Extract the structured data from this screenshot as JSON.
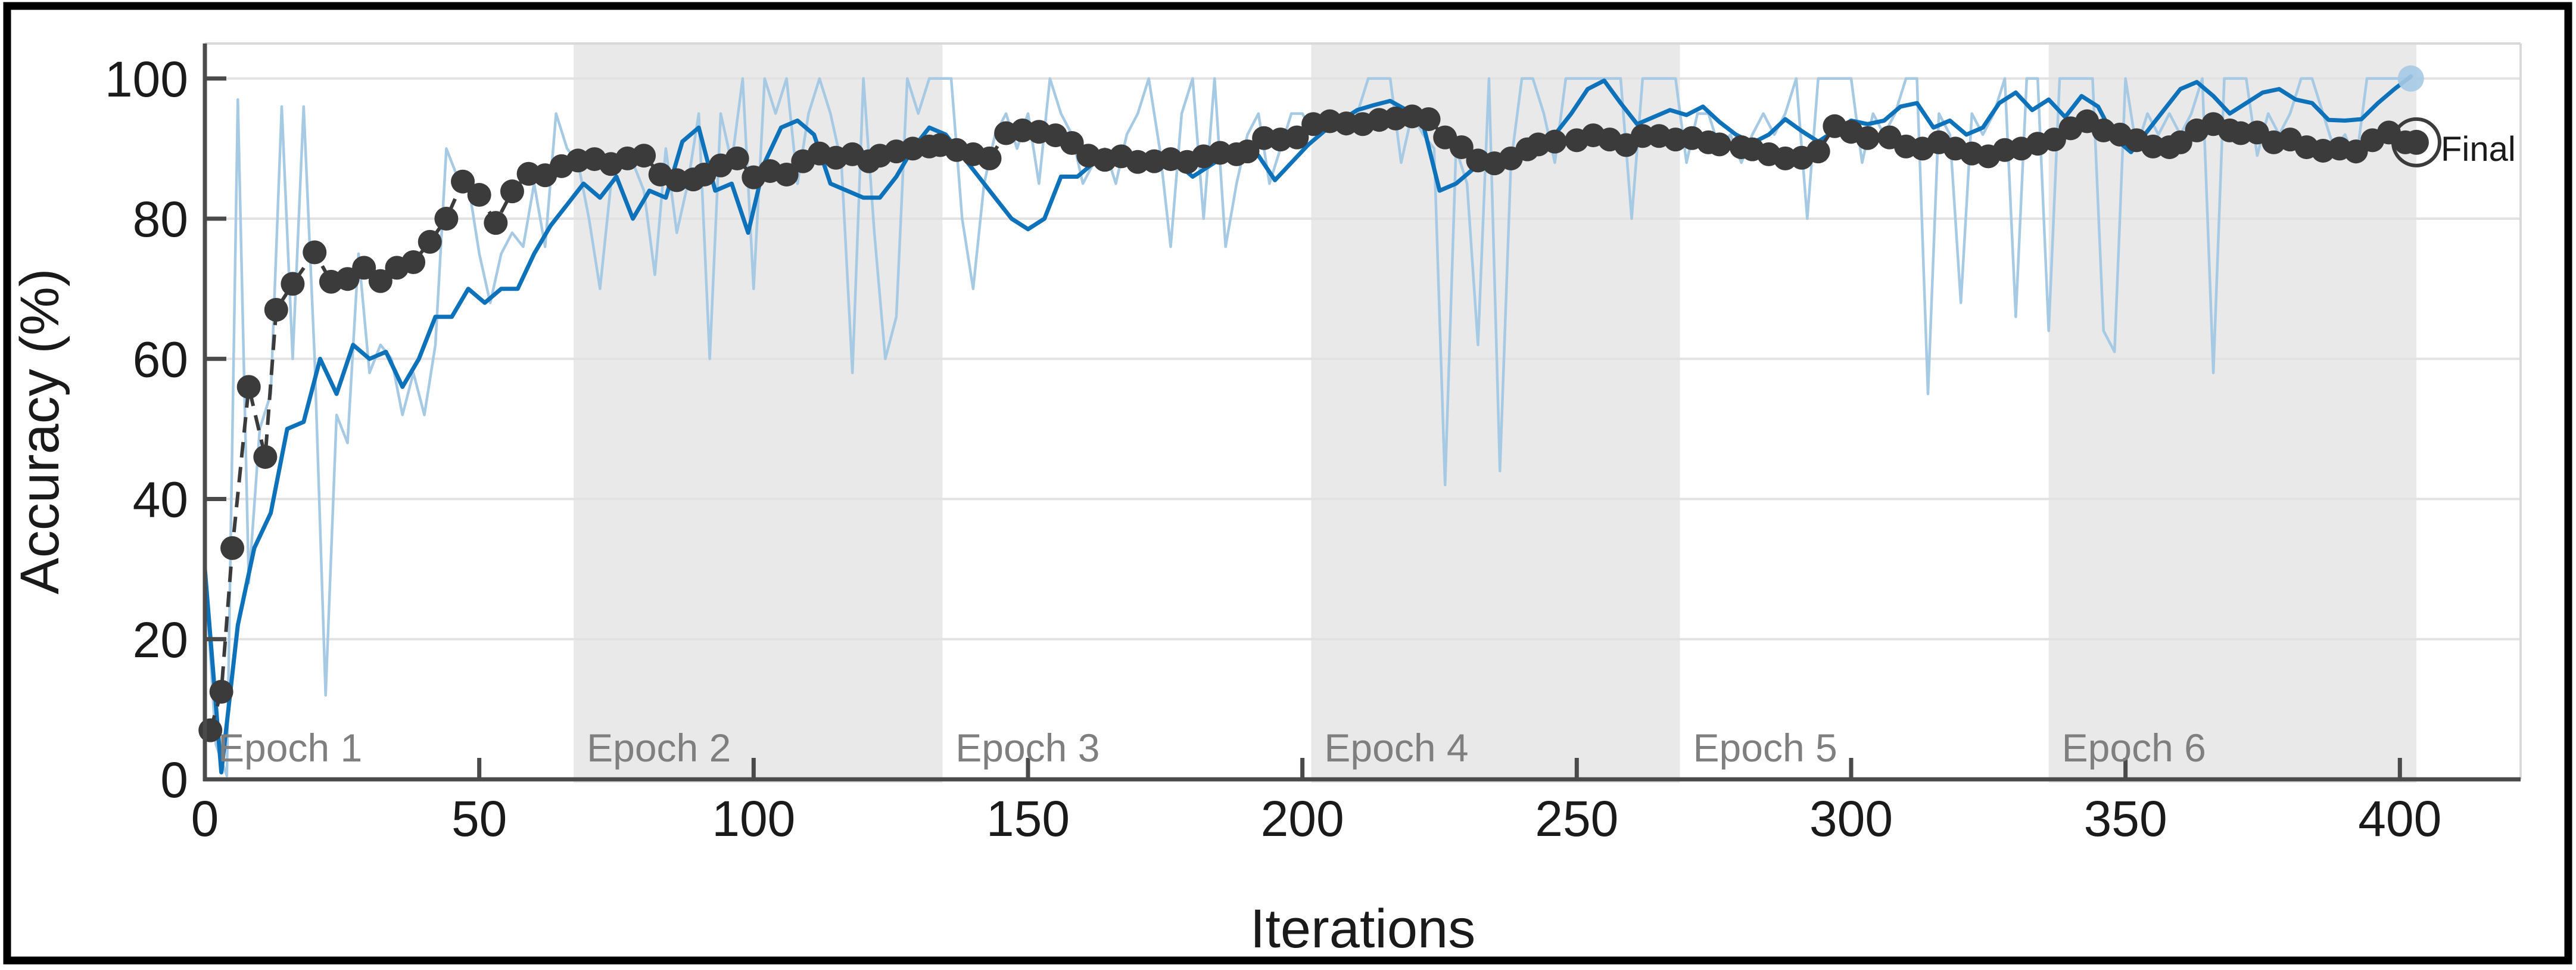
{
  "figure": {
    "background": "#ffffff",
    "border_color": "#000000",
    "border_width": 12
  },
  "chart_data": {
    "type": "line",
    "xlabel": "Iterations",
    "ylabel": "Accuracy (%)",
    "xlim": [
      0,
      422
    ],
    "ylim": [
      0,
      105
    ],
    "x_ticks": [
      0,
      50,
      100,
      150,
      200,
      250,
      300,
      350,
      400
    ],
    "y_ticks": [
      0,
      20,
      40,
      60,
      80,
      100
    ],
    "grid_y": [
      20,
      40,
      60,
      80,
      100
    ],
    "grid_on": true,
    "legend_position": "none",
    "colors": {
      "grid": "#e2e2e2",
      "axis": "#4a4a4a",
      "box_light": "#d9d9d9",
      "band": "#e9e9e9",
      "epoch_label": "#7f7f7f",
      "tick_label": "#1a1a1a",
      "raw": "#a6c9e4",
      "smoothed": "#0d72b9",
      "validation": "#3b3b3b"
    },
    "epochs": {
      "labels": [
        "Epoch 1",
        "Epoch 2",
        "Epoch 3",
        "Epoch 4",
        "Epoch 5",
        "Epoch 6"
      ],
      "boundaries": [
        0,
        67.2,
        134.4,
        201.6,
        268.8,
        336,
        403
      ],
      "shaded_indices": [
        1,
        3,
        5
      ]
    },
    "series": [
      {
        "name": "training-accuracy-raw",
        "style": "solid",
        "color": "#a6c9e4",
        "width": 4.5,
        "x_start": 0,
        "x_step": 2,
        "values": [
          30,
          5,
          0.5,
          97,
          28,
          50,
          55,
          96,
          60,
          96,
          60,
          12,
          52,
          48,
          75,
          58,
          62,
          60,
          52,
          58,
          52,
          62,
          90,
          86,
          85,
          75,
          68,
          75,
          78,
          76,
          85,
          76,
          95,
          90,
          88,
          80,
          70,
          85,
          88,
          88,
          84,
          72,
          90,
          78,
          85,
          95,
          60,
          95,
          88,
          100,
          70,
          100,
          95,
          100,
          85,
          95,
          100,
          95,
          88,
          58,
          100,
          78,
          60,
          66,
          100,
          95,
          100,
          100,
          100,
          80,
          70,
          85,
          92,
          95,
          90,
          95,
          85,
          100,
          95,
          92,
          85,
          88,
          90,
          85,
          92,
          95,
          100,
          90,
          76,
          95,
          100,
          80,
          100,
          76,
          85,
          92,
          95,
          85,
          90,
          95,
          95,
          92,
          95,
          95,
          92,
          95,
          100,
          100,
          100,
          88,
          95,
          92,
          90,
          42,
          90,
          85,
          62,
          100,
          44,
          88,
          100,
          100,
          95,
          88,
          100,
          100,
          100,
          100,
          100,
          100,
          80,
          100,
          100,
          100,
          100,
          88,
          95,
          95,
          90,
          92,
          88,
          92,
          95,
          92,
          95,
          100,
          80,
          100,
          100,
          100,
          100,
          88,
          95,
          92,
          95,
          100,
          100,
          55,
          95,
          92,
          68,
          95,
          92,
          95,
          100,
          66,
          100,
          100,
          64,
          100,
          100,
          100,
          100,
          64,
          61,
          100,
          90,
          95,
          92,
          95,
          92,
          95,
          100,
          58,
          100,
          100,
          100,
          89,
          95,
          92,
          95,
          100,
          100,
          95,
          90,
          92,
          88,
          100,
          100,
          100,
          100,
          100
        ]
      },
      {
        "name": "training-accuracy-smoothed",
        "style": "solid",
        "color": "#0d72b9",
        "width": 7,
        "x_start": 0,
        "x_step": 3,
        "values": [
          30,
          1,
          22,
          33,
          38,
          50,
          51,
          60,
          55,
          62,
          60,
          61,
          56,
          60,
          66,
          66,
          70,
          68,
          70,
          70,
          75,
          79,
          82,
          85,
          83,
          86,
          80,
          84,
          83,
          91,
          93,
          84,
          85,
          78,
          88,
          93,
          94,
          92,
          85,
          84,
          83,
          83,
          86,
          90,
          93,
          92,
          89,
          86,
          83,
          80,
          78.5,
          80,
          86,
          86,
          88,
          88.5,
          88.5,
          89,
          89,
          88,
          86,
          87.5,
          89,
          89.5,
          89,
          85.5,
          88,
          90.5,
          92.5,
          94,
          95.5,
          96.2,
          96.8,
          95.5,
          93.5,
          84,
          85,
          87,
          89,
          89,
          90,
          90.8,
          92,
          95,
          98.5,
          99.7,
          96.5,
          93.5,
          94.5,
          95.5,
          94.8,
          96,
          93.8,
          92,
          90.8,
          92,
          94.2,
          92.5,
          91,
          92.5,
          94,
          93.5,
          94,
          96,
          96.5,
          93,
          94,
          92,
          93,
          96.5,
          98,
          95.5,
          97,
          94.5,
          97.5,
          96,
          91.5,
          89.5,
          92.5,
          95.5,
          98.5,
          99.5,
          97.5,
          95,
          96.5,
          98,
          98.5,
          97,
          96.5,
          94.1,
          94,
          94.2,
          96.5,
          98.5,
          100.3
        ]
      }
    ],
    "validation": {
      "name": "validation-accuracy",
      "style": "dashed",
      "color": "#3b3b3b",
      "width": 6,
      "dash": "26 16",
      "marker_radius": 20,
      "x": [
        1,
        3,
        5,
        8,
        11,
        13,
        16,
        20,
        23,
        26,
        29,
        32,
        35,
        38,
        41,
        44,
        47,
        50,
        53,
        56,
        59,
        62,
        65,
        68,
        71,
        74,
        77,
        80,
        83,
        86,
        89,
        91,
        94,
        97,
        100,
        103,
        106,
        109,
        112,
        115,
        118,
        121,
        123,
        126,
        129,
        132,
        134,
        137,
        140,
        143,
        146,
        149,
        152,
        155,
        158,
        161,
        164,
        167,
        170,
        173,
        176,
        179,
        182,
        185,
        188,
        190,
        193,
        196,
        199,
        202,
        205,
        208,
        211,
        214,
        217,
        220,
        223,
        226,
        229,
        232,
        235,
        238,
        241,
        243,
        246,
        250,
        253,
        256,
        259,
        262,
        265,
        268,
        271,
        274,
        276,
        280,
        282,
        285,
        288,
        291,
        294,
        297,
        300,
        303,
        307,
        310,
        313,
        316,
        319,
        322,
        325,
        328,
        331,
        334,
        337,
        340,
        343,
        346,
        349,
        352,
        355,
        358,
        360,
        363,
        366,
        369,
        371,
        374,
        377,
        380,
        383,
        386,
        389,
        392,
        395,
        398,
        401
      ],
      "y": [
        7,
        12.5,
        33,
        56,
        46,
        67,
        70.7,
        75.2,
        71,
        71.4,
        73,
        71.1,
        73,
        73.8,
        76.7,
        80,
        85.3,
        83.4,
        79.4,
        83.9,
        86.4,
        86.2,
        87.5,
        88.3,
        88.5,
        87.8,
        88.6,
        89,
        86.3,
        85.5,
        85.6,
        86.3,
        87.6,
        88.6,
        85.9,
        86.8,
        86.3,
        88.2,
        89.3,
        88.7,
        89.2,
        88.2,
        89,
        89.6,
        90,
        90.3,
        90.5,
        89.8,
        89.2,
        88.6,
        92.2,
        92.6,
        92.4,
        91.9,
        90.8,
        89,
        88.4,
        88.9,
        88.1,
        88.2,
        88.5,
        88.1,
        88.9,
        89.4,
        89.2,
        89.6,
        91.5,
        91.3,
        91.6,
        93.5,
        93.9,
        93.6,
        93.5,
        94.1,
        94.3,
        94.6,
        94.2,
        91.6,
        90.2,
        88.3,
        87.9,
        88.6,
        89.9,
        90.6,
        91,
        91.2,
        91.9,
        91.3,
        90.5,
        91.8,
        91.8,
        91.3,
        91.5,
        90.9,
        90.6,
        90.2,
        89.9,
        89.2,
        88.6,
        88.7,
        89.6,
        93.2,
        92.4,
        91.5,
        91.6,
        90.3,
        90,
        90.9,
        90,
        89.3,
        88.9,
        89.8,
        90,
        90.7,
        91.3,
        92.9,
        93.9,
        92.6,
        92,
        91.2,
        90.3,
        90.2,
        90.9,
        92.6,
        93.5,
        92.6,
        92.2,
        92.3,
        90.9,
        91.3,
        90.2,
        89.7,
        90,
        89.6,
        91.2,
        92.3,
        90.9
      ]
    },
    "final_marker": {
      "label": "Final",
      "x": 403,
      "y": 90.9
    },
    "end_dot": {
      "x": 402,
      "y": 100,
      "radius": 22
    }
  }
}
